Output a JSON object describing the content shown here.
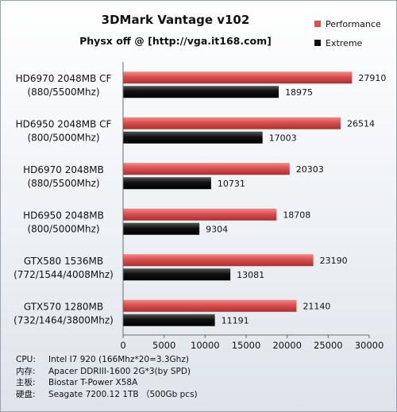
{
  "chart_data": {
    "type": "bar",
    "orientation": "horizontal",
    "title": "3DMark Vantage v102",
    "subtitle": "Physx off @ [http://vga.it168.com]",
    "categories": [
      [
        "HD6970 2048MB CF",
        "(880/5500Mhz)"
      ],
      [
        "HD6950 2048MB CF",
        "(800/5000Mhz)"
      ],
      [
        "HD6970 2048MB",
        "(880/5500Mhz)"
      ],
      [
        "HD6950 2048MB",
        "(800/5000Mhz)"
      ],
      [
        "GTX580 1536MB",
        "(772/1544/4008Mhz)"
      ],
      [
        "GTX570 1280MB",
        "(732/1464/3800Mhz)"
      ]
    ],
    "series": [
      {
        "name": "Performance",
        "color": "#d9504f",
        "values": [
          27910,
          26514,
          20303,
          18708,
          23190,
          21140
        ]
      },
      {
        "name": "Extreme",
        "color": "#111111",
        "values": [
          18975,
          17003,
          10731,
          9304,
          13081,
          11191
        ]
      }
    ],
    "xlim": [
      0,
      30000
    ],
    "xticks": [
      0,
      5000,
      10000,
      15000,
      20000,
      25000,
      30000
    ],
    "grid": false,
    "legend_position": "top-right"
  },
  "specs": [
    {
      "key": "CPU:",
      "value": "Intel I7 920 (166Mhz*20=3.3Ghz)"
    },
    {
      "key": "内存:",
      "value": "Apacer DDRIII-1600 2G*3(by SPD)"
    },
    {
      "key": "主板:",
      "value": "Biostar T-Power X58A"
    },
    {
      "key": "硬盘:",
      "value": "Seagate 7200.12 1TB （500Gb pcs)"
    }
  ]
}
